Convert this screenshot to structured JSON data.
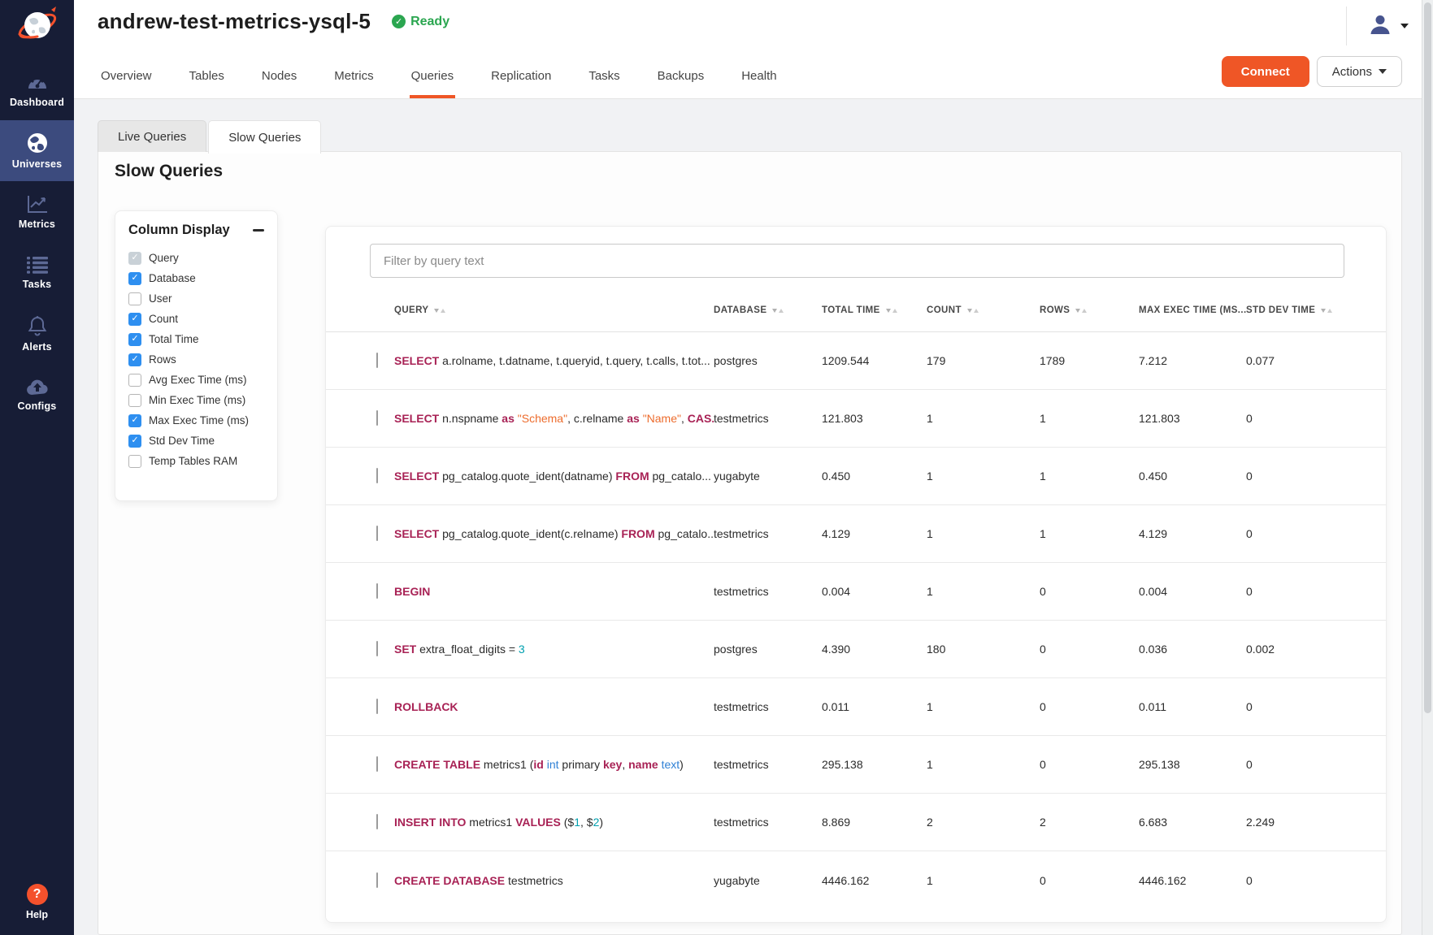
{
  "colors": {
    "accent_orange": "#ef5626",
    "status_green": "#2ba650",
    "checkbox_blue": "#2e8ff0",
    "sql_keyword": "#a82255",
    "sql_string": "#ed6c2d",
    "sql_number": "#00a0af",
    "sql_type": "#2f80d5",
    "sidebar_bg": "#171d36",
    "sidebar_active_bg": "#3c4b7e"
  },
  "sidebar": {
    "items": [
      {
        "label": "Dashboard",
        "icon": "dashboard-gauge-icon",
        "active": false
      },
      {
        "label": "Universes",
        "icon": "universes-globe-icon",
        "active": true
      },
      {
        "label": "Metrics",
        "icon": "metrics-chart-icon",
        "active": false
      },
      {
        "label": "Tasks",
        "icon": "tasks-list-icon",
        "active": false
      },
      {
        "label": "Alerts",
        "icon": "alerts-bell-icon",
        "active": false
      },
      {
        "label": "Configs",
        "icon": "configs-cloud-icon",
        "active": false
      }
    ],
    "help_label": "Help"
  },
  "header": {
    "title": "andrew-test-metrics-ysql-5",
    "status_label": "Ready",
    "nav_tabs": [
      {
        "label": "Overview",
        "active": false
      },
      {
        "label": "Tables",
        "active": false
      },
      {
        "label": "Nodes",
        "active": false
      },
      {
        "label": "Metrics",
        "active": false
      },
      {
        "label": "Queries",
        "active": true
      },
      {
        "label": "Replication",
        "active": false
      },
      {
        "label": "Tasks",
        "active": false
      },
      {
        "label": "Backups",
        "active": false
      },
      {
        "label": "Health",
        "active": false
      }
    ],
    "connect_label": "Connect",
    "actions_label": "Actions"
  },
  "queries_page": {
    "tabs": [
      {
        "label": "Live Queries",
        "active": false
      },
      {
        "label": "Slow Queries",
        "active": true
      }
    ],
    "heading": "Slow Queries",
    "column_display": {
      "title": "Column Display",
      "items": [
        {
          "label": "Query",
          "checked": true,
          "disabled": true
        },
        {
          "label": "Database",
          "checked": true,
          "disabled": false
        },
        {
          "label": "User",
          "checked": false,
          "disabled": false
        },
        {
          "label": "Count",
          "checked": true,
          "disabled": false
        },
        {
          "label": "Total Time",
          "checked": true,
          "disabled": false
        },
        {
          "label": "Rows",
          "checked": true,
          "disabled": false
        },
        {
          "label": "Avg Exec Time (ms)",
          "checked": false,
          "disabled": false
        },
        {
          "label": "Min Exec Time (ms)",
          "checked": false,
          "disabled": false
        },
        {
          "label": "Max Exec Time (ms)",
          "checked": true,
          "disabled": false
        },
        {
          "label": "Std Dev Time",
          "checked": true,
          "disabled": false
        },
        {
          "label": "Temp Tables RAM",
          "checked": false,
          "disabled": false
        }
      ]
    },
    "filter_placeholder": "Filter by query text",
    "table": {
      "columns": [
        {
          "label": "QUERY",
          "sortable": true
        },
        {
          "label": "DATABASE",
          "sortable": true
        },
        {
          "label": "TOTAL TIME",
          "sortable": true
        },
        {
          "label": "COUNT",
          "sortable": true
        },
        {
          "label": "ROWS",
          "sortable": true
        },
        {
          "label": "MAX EXEC TIME (MS...",
          "sortable": false
        },
        {
          "label": "STD DEV TIME",
          "sortable": true
        }
      ],
      "rows": [
        {
          "query": [
            {
              "t": "kw",
              "v": "SELECT"
            },
            {
              "t": "txt",
              "v": " a.rolname, t.datname, t.queryid, t.query, t.calls, t.tot..."
            }
          ],
          "database": "postgres",
          "total_time": "1209.544",
          "count": "179",
          "rows": "1789",
          "max_exec_time": "7.212",
          "std_dev_time": "0.077"
        },
        {
          "query": [
            {
              "t": "kw",
              "v": "SELECT"
            },
            {
              "t": "txt",
              "v": " n.nspname "
            },
            {
              "t": "kw",
              "v": "as"
            },
            {
              "t": "txt",
              "v": " "
            },
            {
              "t": "str",
              "v": "\"Schema\""
            },
            {
              "t": "txt",
              "v": ", c.relname "
            },
            {
              "t": "kw",
              "v": "as"
            },
            {
              "t": "txt",
              "v": " "
            },
            {
              "t": "str",
              "v": "\"Name\""
            },
            {
              "t": "txt",
              "v": ", "
            },
            {
              "t": "kw",
              "v": "CAS..."
            }
          ],
          "database": "testmetrics",
          "total_time": "121.803",
          "count": "1",
          "rows": "1",
          "max_exec_time": "121.803",
          "std_dev_time": "0"
        },
        {
          "query": [
            {
              "t": "kw",
              "v": "SELECT"
            },
            {
              "t": "txt",
              "v": " pg_catalog.quote_ident(datname) "
            },
            {
              "t": "kw",
              "v": "FROM"
            },
            {
              "t": "txt",
              "v": " pg_catalo..."
            }
          ],
          "database": "yugabyte",
          "total_time": "0.450",
          "count": "1",
          "rows": "1",
          "max_exec_time": "0.450",
          "std_dev_time": "0"
        },
        {
          "query": [
            {
              "t": "kw",
              "v": "SELECT"
            },
            {
              "t": "txt",
              "v": " pg_catalog.quote_ident(c.relname) "
            },
            {
              "t": "kw",
              "v": "FROM"
            },
            {
              "t": "txt",
              "v": " pg_catalo..."
            }
          ],
          "database": "testmetrics",
          "total_time": "4.129",
          "count": "1",
          "rows": "1",
          "max_exec_time": "4.129",
          "std_dev_time": "0"
        },
        {
          "query": [
            {
              "t": "kw",
              "v": "BEGIN"
            }
          ],
          "database": "testmetrics",
          "total_time": "0.004",
          "count": "1",
          "rows": "0",
          "max_exec_time": "0.004",
          "std_dev_time": "0"
        },
        {
          "query": [
            {
              "t": "kw",
              "v": "SET"
            },
            {
              "t": "txt",
              "v": " extra_float_digits = "
            },
            {
              "t": "num",
              "v": "3"
            }
          ],
          "database": "postgres",
          "total_time": "4.390",
          "count": "180",
          "rows": "0",
          "max_exec_time": "0.036",
          "std_dev_time": "0.002"
        },
        {
          "query": [
            {
              "t": "kw",
              "v": "ROLLBACK"
            }
          ],
          "database": "testmetrics",
          "total_time": "0.011",
          "count": "1",
          "rows": "0",
          "max_exec_time": "0.011",
          "std_dev_time": "0"
        },
        {
          "query": [
            {
              "t": "kw",
              "v": "CREATE TABLE"
            },
            {
              "t": "txt",
              "v": " metrics1 ("
            },
            {
              "t": "kw",
              "v": "id"
            },
            {
              "t": "txt",
              "v": " "
            },
            {
              "t": "type",
              "v": "int"
            },
            {
              "t": "txt",
              "v": " primary "
            },
            {
              "t": "kw",
              "v": "key"
            },
            {
              "t": "txt",
              "v": ", "
            },
            {
              "t": "kw",
              "v": "name"
            },
            {
              "t": "txt",
              "v": " "
            },
            {
              "t": "type",
              "v": "text"
            },
            {
              "t": "txt",
              "v": ")"
            }
          ],
          "database": "testmetrics",
          "total_time": "295.138",
          "count": "1",
          "rows": "0",
          "max_exec_time": "295.138",
          "std_dev_time": "0"
        },
        {
          "query": [
            {
              "t": "kw",
              "v": "INSERT INTO"
            },
            {
              "t": "txt",
              "v": " metrics1 "
            },
            {
              "t": "kw",
              "v": "VALUES"
            },
            {
              "t": "txt",
              "v": " ($"
            },
            {
              "t": "num",
              "v": "1"
            },
            {
              "t": "txt",
              "v": ", $"
            },
            {
              "t": "num",
              "v": "2"
            },
            {
              "t": "txt",
              "v": ")"
            }
          ],
          "database": "testmetrics",
          "total_time": "8.869",
          "count": "2",
          "rows": "2",
          "max_exec_time": "6.683",
          "std_dev_time": "2.249"
        },
        {
          "query": [
            {
              "t": "kw",
              "v": "CREATE DATABASE"
            },
            {
              "t": "txt",
              "v": " testmetrics"
            }
          ],
          "database": "yugabyte",
          "total_time": "4446.162",
          "count": "1",
          "rows": "0",
          "max_exec_time": "4446.162",
          "std_dev_time": "0"
        }
      ]
    }
  }
}
